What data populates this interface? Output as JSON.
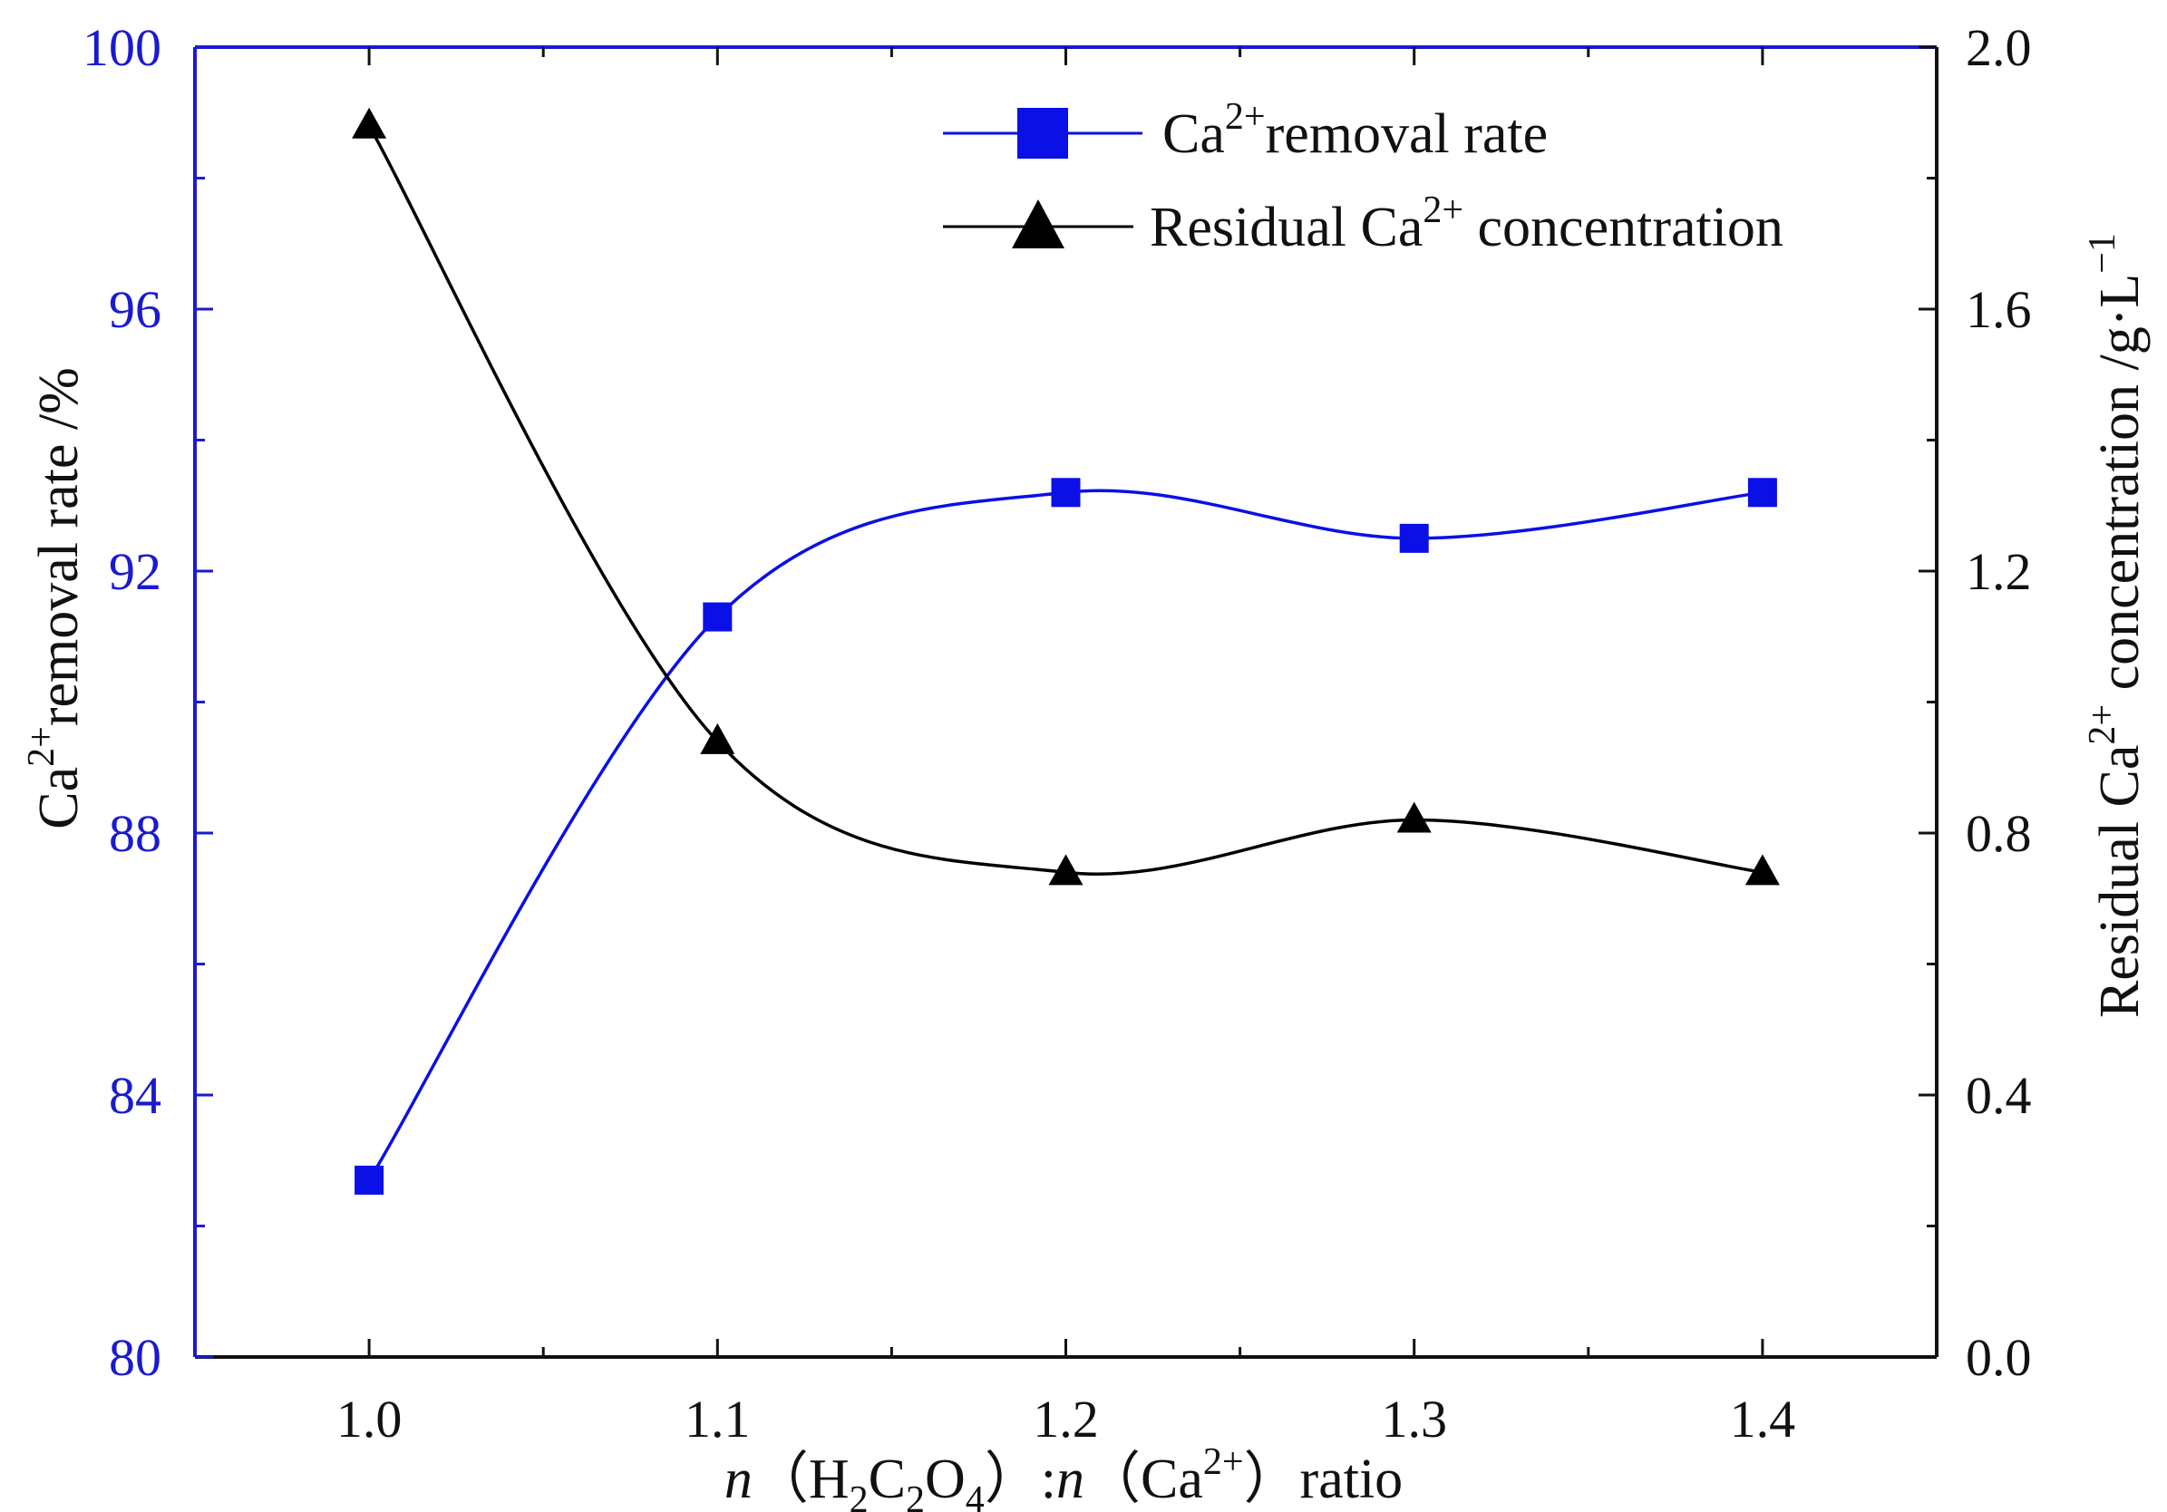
{
  "chart_data": {
    "type": "line",
    "x": [
      1.0,
      1.1,
      1.2,
      1.3,
      1.4
    ],
    "xlim": [
      0.95,
      1.45
    ],
    "x_ticks": [
      "1.0",
      "1.1",
      "1.2",
      "1.3",
      "1.4"
    ],
    "xlabel": {
      "n1": "n",
      "open1": "（H",
      "sub1": "2",
      "c": "C",
      "sub2": "2",
      "o": "O",
      "sub3": "4",
      "close1": "）:",
      "n2": "n",
      "open2": "（Ca",
      "sup": "2+",
      "close2": "）ratio"
    },
    "ylabel_left": {
      "base": "Ca",
      "sup": "2+",
      "rest": "removal rate /%"
    },
    "ylabel_right": {
      "prefix": "Residual Ca",
      "sup": "2+",
      "rest": " concentration  /g·L",
      "sup2": "−1"
    },
    "ylim_left": [
      80,
      100
    ],
    "yticks_left": [
      "80",
      "84",
      "88",
      "92",
      "96",
      "100"
    ],
    "ylim_right": [
      0.0,
      2.0
    ],
    "yticks_right": [
      "0.0",
      "0.4",
      "0.8",
      "1.2",
      "1.6",
      "2.0"
    ],
    "series": [
      {
        "name": "Ca2+ removal rate",
        "legend": {
          "base": "Ca",
          "sup": "2+",
          "rest": "removal rate"
        },
        "axis": "left",
        "marker": "square",
        "color": "#0a10e6",
        "values": [
          82.7,
          91.3,
          93.2,
          92.5,
          93.2
        ]
      },
      {
        "name": "Residual Ca2+ concentration",
        "legend": {
          "base": "Residual Ca",
          "sup": "2+",
          "rest": " concentration"
        },
        "axis": "right",
        "marker": "triangle",
        "color": "#000000",
        "values": [
          1.88,
          0.94,
          0.74,
          0.82,
          0.74
        ]
      }
    ],
    "axis_colors": {
      "left": "#1a1ad0",
      "frame": "#111111"
    },
    "legend_position": "top-right",
    "grid": false
  }
}
